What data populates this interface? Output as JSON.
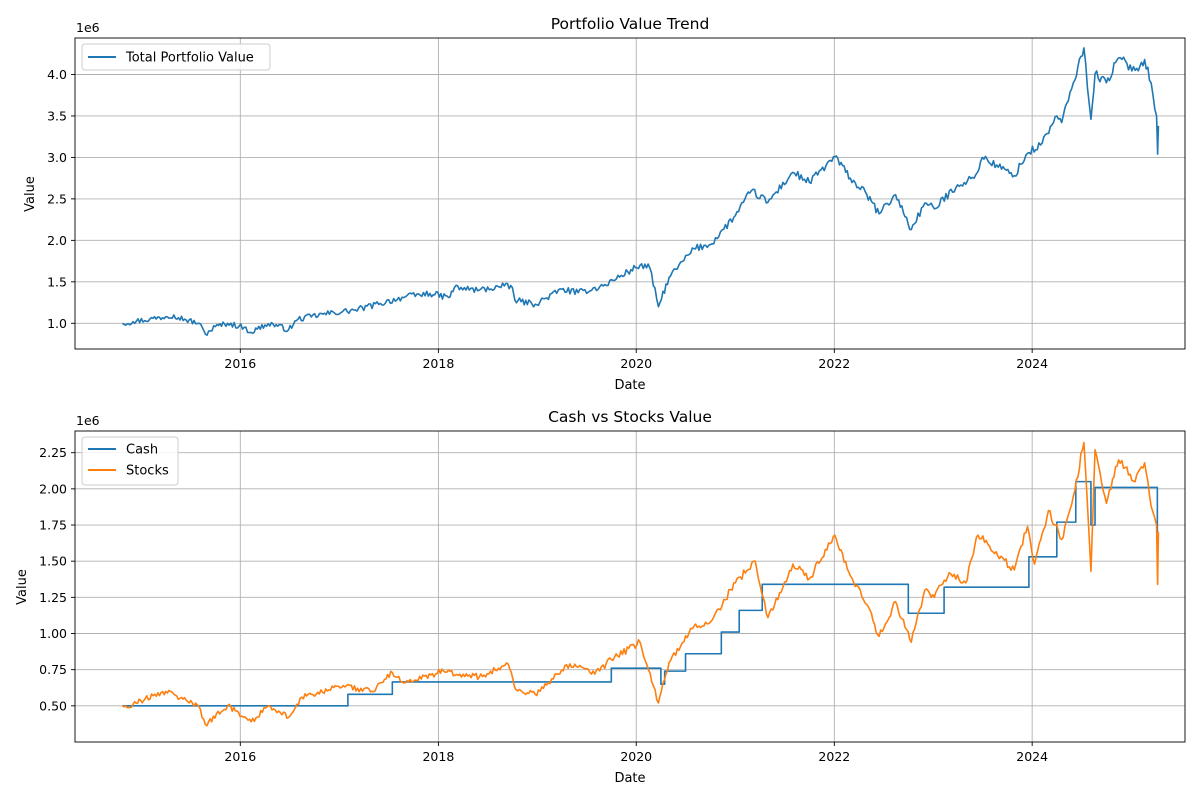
{
  "chart_data": [
    {
      "type": "line",
      "title": "Portfolio Value Trend",
      "xlabel": "Date",
      "ylabel": "Value",
      "offset_text": "1e6",
      "xlim": [
        "2014-05-01",
        "2025-07-18"
      ],
      "ylim": [
        690000,
        4440000
      ],
      "grid": true,
      "legend_position": "top-left",
      "x_tick_labels": [
        {
          "value": "2016-01-01",
          "label": "2016"
        },
        {
          "value": "2018-01-01",
          "label": "2018"
        },
        {
          "value": "2020-01-01",
          "label": "2020"
        },
        {
          "value": "2022-01-01",
          "label": "2022"
        },
        {
          "value": "2024-01-01",
          "label": "2024"
        }
      ],
      "y_tick_labels": [
        {
          "value": 1000000,
          "label": "1.0"
        },
        {
          "value": 1500000,
          "label": "1.5"
        },
        {
          "value": 2000000,
          "label": "2.0"
        },
        {
          "value": 2500000,
          "label": "2.5"
        },
        {
          "value": 3000000,
          "label": "3.0"
        },
        {
          "value": 3500000,
          "label": "3.5"
        },
        {
          "value": 4000000,
          "label": "4.0"
        }
      ],
      "series": [
        {
          "name": "Total Portfolio Value",
          "color": "#1f77b4",
          "step": false,
          "points": [
            [
              "2014-10-23",
              1000000
            ],
            [
              "2014-12-01",
              1020000
            ],
            [
              "2015-02-01",
              1050000
            ],
            [
              "2015-04-01",
              1080000
            ],
            [
              "2015-05-01",
              1100000
            ],
            [
              "2015-06-15",
              1040000
            ],
            [
              "2015-08-01",
              1000000
            ],
            [
              "2015-08-25",
              870000
            ],
            [
              "2015-10-01",
              960000
            ],
            [
              "2015-11-15",
              1000000
            ],
            [
              "2016-01-15",
              950000
            ],
            [
              "2016-02-10",
              890000
            ],
            [
              "2016-04-01",
              980000
            ],
            [
              "2016-05-01",
              990000
            ],
            [
              "2016-06-27",
              920000
            ],
            [
              "2016-08-01",
              1050000
            ],
            [
              "2016-11-01",
              1110000
            ],
            [
              "2017-03-01",
              1160000
            ],
            [
              "2017-06-01",
              1240000
            ],
            [
              "2017-09-01",
              1320000
            ],
            [
              "2017-12-01",
              1360000
            ],
            [
              "2018-02-08",
              1310000
            ],
            [
              "2018-03-01",
              1430000
            ],
            [
              "2018-06-01",
              1400000
            ],
            [
              "2018-09-01",
              1450000
            ],
            [
              "2018-10-01",
              1430000
            ],
            [
              "2018-10-10",
              1280000
            ],
            [
              "2018-12-24",
              1230000
            ],
            [
              "2019-04-01",
              1410000
            ],
            [
              "2019-06-01",
              1370000
            ],
            [
              "2019-09-01",
              1450000
            ],
            [
              "2019-12-01",
              1620000
            ],
            [
              "2020-01-15",
              1700000
            ],
            [
              "2020-02-20",
              1670000
            ],
            [
              "2020-03-23",
              1200000
            ],
            [
              "2020-05-01",
              1550000
            ],
            [
              "2020-08-01",
              1900000
            ],
            [
              "2020-10-01",
              1950000
            ],
            [
              "2021-01-01",
              2300000
            ],
            [
              "2021-03-01",
              2600000
            ],
            [
              "2021-05-01",
              2460000
            ],
            [
              "2021-08-01",
              2820000
            ],
            [
              "2021-10-01",
              2700000
            ],
            [
              "2021-12-01",
              2900000
            ],
            [
              "2022-01-03",
              3010000
            ],
            [
              "2022-03-01",
              2750000
            ],
            [
              "2022-05-01",
              2550000
            ],
            [
              "2022-06-15",
              2320000
            ],
            [
              "2022-08-15",
              2550000
            ],
            [
              "2022-10-12",
              2130000
            ],
            [
              "2022-12-01",
              2450000
            ],
            [
              "2023-01-05",
              2380000
            ],
            [
              "2023-04-01",
              2670000
            ],
            [
              "2023-06-01",
              2750000
            ],
            [
              "2023-07-01",
              3000000
            ],
            [
              "2023-10-27",
              2780000
            ],
            [
              "2023-12-15",
              3050000
            ],
            [
              "2024-02-01",
              3150000
            ],
            [
              "2024-04-01",
              3500000
            ],
            [
              "2024-04-19",
              3420000
            ],
            [
              "2024-06-01",
              3900000
            ],
            [
              "2024-07-10",
              4320000
            ],
            [
              "2024-08-05",
              3460000
            ],
            [
              "2024-08-20",
              4010000
            ],
            [
              "2024-10-01",
              3900000
            ],
            [
              "2024-11-15",
              4200000
            ],
            [
              "2025-01-15",
              4050000
            ],
            [
              "2025-02-19",
              4180000
            ],
            [
              "2025-03-15",
              3900000
            ],
            [
              "2025-04-04",
              3500000
            ],
            [
              "2025-04-08",
              3040000
            ],
            [
              "2025-04-11",
              3380000
            ]
          ]
        }
      ]
    },
    {
      "type": "line",
      "title": "Cash vs Stocks Value",
      "xlabel": "Date",
      "ylabel": "Value",
      "offset_text": "1e6",
      "xlim": [
        "2014-05-01",
        "2025-07-18"
      ],
      "ylim": [
        250000,
        2400000
      ],
      "grid": true,
      "legend_position": "top-left",
      "x_tick_labels": [
        {
          "value": "2016-01-01",
          "label": "2016"
        },
        {
          "value": "2018-01-01",
          "label": "2018"
        },
        {
          "value": "2020-01-01",
          "label": "2020"
        },
        {
          "value": "2022-01-01",
          "label": "2022"
        },
        {
          "value": "2024-01-01",
          "label": "2024"
        }
      ],
      "y_tick_labels": [
        {
          "value": 500000,
          "label": "0.50"
        },
        {
          "value": 750000,
          "label": "0.75"
        },
        {
          "value": 1000000,
          "label": "1.00"
        },
        {
          "value": 1250000,
          "label": "1.25"
        },
        {
          "value": 1500000,
          "label": "1.50"
        },
        {
          "value": 1750000,
          "label": "1.75"
        },
        {
          "value": 2000000,
          "label": "2.00"
        },
        {
          "value": 2250000,
          "label": "2.25"
        }
      ],
      "series": [
        {
          "name": "Cash",
          "color": "#1f77b4",
          "step": true,
          "points": [
            [
              "2014-10-23",
              500000
            ],
            [
              "2017-02-01",
              580000
            ],
            [
              "2017-07-15",
              665000
            ],
            [
              "2019-10-01",
              760000
            ],
            [
              "2020-04-01",
              650000
            ],
            [
              "2020-04-15",
              740000
            ],
            [
              "2020-07-01",
              860000
            ],
            [
              "2020-11-10",
              1010000
            ],
            [
              "2021-01-15",
              1160000
            ],
            [
              "2021-04-10",
              1340000
            ],
            [
              "2022-10-01",
              1140000
            ],
            [
              "2023-02-10",
              1320000
            ],
            [
              "2023-12-20",
              1530000
            ],
            [
              "2024-04-01",
              1770000
            ],
            [
              "2024-06-10",
              2050000
            ],
            [
              "2024-08-05",
              1750000
            ],
            [
              "2024-08-20",
              2010000
            ],
            [
              "2025-04-07",
              1700000
            ],
            [
              "2025-04-11",
              1700000
            ]
          ]
        },
        {
          "name": "Stocks",
          "color": "#ff7f0e",
          "step": false,
          "points": [
            [
              "2014-10-23",
              500000
            ],
            [
              "2014-12-01",
              510000
            ],
            [
              "2015-01-15",
              550000
            ],
            [
              "2015-04-01",
              600000
            ],
            [
              "2015-06-15",
              540000
            ],
            [
              "2015-08-01",
              500000
            ],
            [
              "2015-08-25",
              370000
            ],
            [
              "2015-11-15",
              500000
            ],
            [
              "2016-02-10",
              390000
            ],
            [
              "2016-04-15",
              500000
            ],
            [
              "2016-06-27",
              420000
            ],
            [
              "2016-08-15",
              560000
            ],
            [
              "2017-01-15",
              640000
            ],
            [
              "2017-05-01",
              600000
            ],
            [
              "2017-07-15",
              730000
            ],
            [
              "2017-09-01",
              660000
            ],
            [
              "2018-01-20",
              740000
            ],
            [
              "2018-06-01",
              700000
            ],
            [
              "2018-09-15",
              790000
            ],
            [
              "2018-10-15",
              610000
            ],
            [
              "2018-12-24",
              580000
            ],
            [
              "2019-05-01",
              790000
            ],
            [
              "2019-08-01",
              720000
            ],
            [
              "2019-10-01",
              820000
            ],
            [
              "2020-01-15",
              940000
            ],
            [
              "2020-03-23",
              520000
            ],
            [
              "2020-05-01",
              800000
            ],
            [
              "2020-08-01",
              1050000
            ],
            [
              "2020-10-01",
              1080000
            ],
            [
              "2021-01-01",
              1350000
            ],
            [
              "2021-03-15",
              1500000
            ],
            [
              "2021-05-01",
              1110000
            ],
            [
              "2021-08-01",
              1480000
            ],
            [
              "2021-10-01",
              1380000
            ],
            [
              "2022-01-03",
              1680000
            ],
            [
              "2022-03-01",
              1400000
            ],
            [
              "2022-05-01",
              1200000
            ],
            [
              "2022-06-15",
              980000
            ],
            [
              "2022-08-15",
              1220000
            ],
            [
              "2022-10-12",
              940000
            ],
            [
              "2022-12-01",
              1300000
            ],
            [
              "2023-01-05",
              1250000
            ],
            [
              "2023-03-01",
              1420000
            ],
            [
              "2023-05-01",
              1350000
            ],
            [
              "2023-06-15",
              1680000
            ],
            [
              "2023-10-27",
              1440000
            ],
            [
              "2023-12-15",
              1740000
            ],
            [
              "2024-01-10",
              1480000
            ],
            [
              "2024-03-01",
              1850000
            ],
            [
              "2024-04-19",
              1650000
            ],
            [
              "2024-06-01",
              1950000
            ],
            [
              "2024-07-10",
              2320000
            ],
            [
              "2024-08-05",
              1430000
            ],
            [
              "2024-08-20",
              2270000
            ],
            [
              "2024-10-01",
              1900000
            ],
            [
              "2024-11-15",
              2200000
            ],
            [
              "2025-01-15",
              2050000
            ],
            [
              "2025-02-19",
              2180000
            ],
            [
              "2025-03-15",
              1880000
            ],
            [
              "2025-04-04",
              1750000
            ],
            [
              "2025-04-08",
              1340000
            ],
            [
              "2025-04-11",
              1700000
            ]
          ]
        }
      ]
    }
  ]
}
